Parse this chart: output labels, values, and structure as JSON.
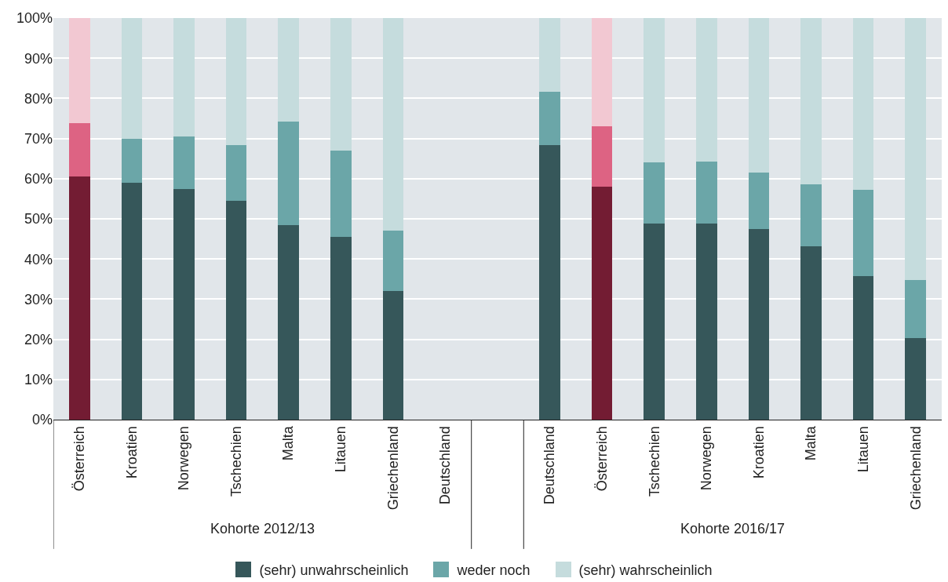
{
  "chart_data": {
    "type": "bar",
    "stacked": true,
    "categories": [
      "Österreich",
      "Kroatien",
      "Norwegen",
      "Tschechien",
      "Malta",
      "Litauen",
      "Griechenland",
      "Deutschland",
      null,
      "Deutschland",
      "Österreich",
      "Tschechien",
      "Norwegen",
      "Kroatien",
      "Malta",
      "Litauen",
      "Griechenland"
    ],
    "series": [
      {
        "name": "(sehr) unwahrscheinlich",
        "color": "#36575a",
        "colors": [
          "#731c33",
          "#36575a",
          "#36575a",
          "#36575a",
          "#36575a",
          "#36575a",
          "#36575a",
          "#36575a",
          "#36575a",
          "#36575a",
          "#731c33",
          "#36575a",
          "#36575a",
          "#36575a",
          "#36575a",
          "#36575a",
          "#36575a"
        ],
        "values": [
          60.5,
          59,
          57.5,
          54.5,
          48.5,
          45.5,
          32,
          null,
          null,
          68.3,
          58,
          48.8,
          48.8,
          47.5,
          43.2,
          35.7,
          20.3
        ]
      },
      {
        "name": "weder noch",
        "color": "#6ba6a8",
        "colors": [
          "#dd6383",
          "#6ba6a8",
          "#6ba6a8",
          "#6ba6a8",
          "#6ba6a8",
          "#6ba6a8",
          "#6ba6a8",
          "#6ba6a8",
          "#6ba6a8",
          "#6ba6a8",
          "#dd6383",
          "#6ba6a8",
          "#6ba6a8",
          "#6ba6a8",
          "#6ba6a8",
          "#6ba6a8",
          "#6ba6a8"
        ],
        "values": [
          13.3,
          11,
          13,
          13.8,
          25.7,
          21.5,
          15,
          null,
          null,
          13.4,
          15,
          15.2,
          15.5,
          14,
          15.3,
          21.6,
          14.4
        ]
      },
      {
        "name": "(sehr) wahrscheinlich",
        "color": "#c5dcdd",
        "colors": [
          "#f2c8d2",
          "#c5dcdd",
          "#c5dcdd",
          "#c5dcdd",
          "#c5dcdd",
          "#c5dcdd",
          "#c5dcdd",
          "#c5dcdd",
          "#c5dcdd",
          "#c5dcdd",
          "#f2c8d2",
          "#c5dcdd",
          "#c5dcdd",
          "#c5dcdd",
          "#c5dcdd",
          "#c5dcdd",
          "#c5dcdd"
        ],
        "values": [
          26.2,
          30,
          29.5,
          31.7,
          25.8,
          33,
          53,
          null,
          null,
          18.3,
          27,
          36,
          35.7,
          38.5,
          41.5,
          42.7,
          65.3
        ]
      }
    ],
    "ylim": [
      0,
      100
    ],
    "yticks": [
      {
        "value": 0,
        "label": "0%"
      },
      {
        "value": 10,
        "label": "10%"
      },
      {
        "value": 20,
        "label": "20%"
      },
      {
        "value": 30,
        "label": "30%"
      },
      {
        "value": 40,
        "label": "40%"
      },
      {
        "value": 50,
        "label": "50%"
      },
      {
        "value": 60,
        "label": "60%"
      },
      {
        "value": 70,
        "label": "70%"
      },
      {
        "value": 80,
        "label": "80%"
      },
      {
        "value": 90,
        "label": "90%"
      },
      {
        "value": 100,
        "label": "100%"
      }
    ],
    "grid": "y",
    "legend": "bottom",
    "annotations": [
      "Kohorte 2012/13",
      "Kohorte 2016/17"
    ]
  }
}
